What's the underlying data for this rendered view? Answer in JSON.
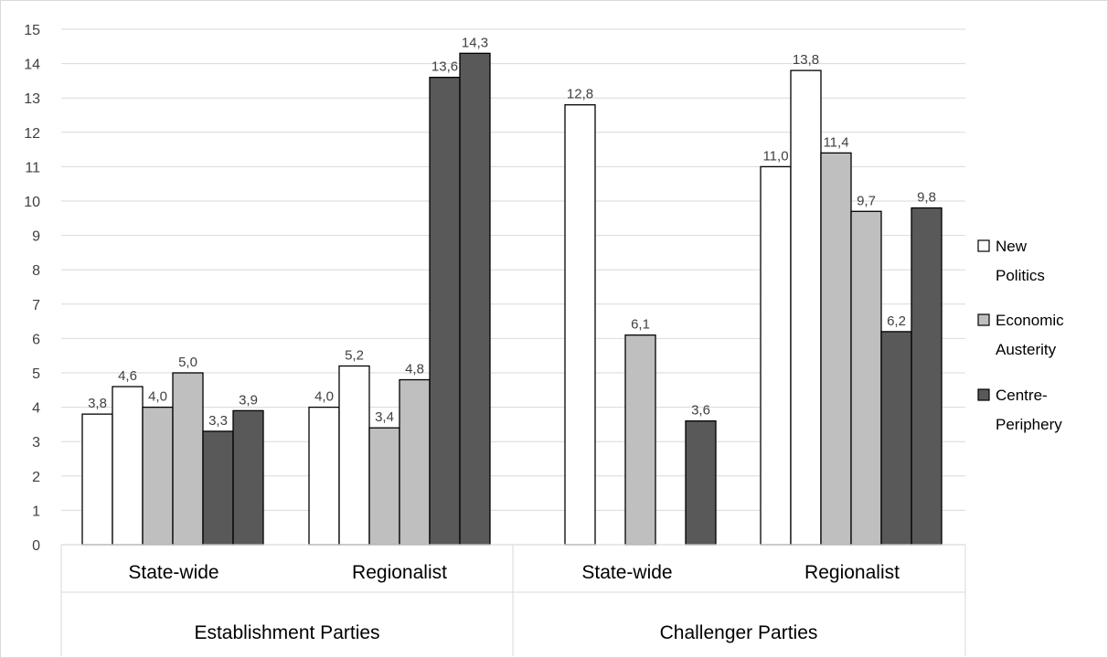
{
  "chart_data": {
    "type": "bar",
    "ylim": [
      0,
      15
    ],
    "yticks": [
      "0",
      "1",
      "2",
      "3",
      "4",
      "5",
      "6",
      "7",
      "8",
      "9",
      "10",
      "11",
      "12",
      "13",
      "14",
      "15"
    ],
    "grid": true,
    "legend_position": "right",
    "groups": [
      {
        "label": "Establishment Parties",
        "subgroups": [
          {
            "label": "State-wide",
            "bars": [
              {
                "series": 0,
                "value": 3.8,
                "label": "3,8"
              },
              {
                "series": 0,
                "value": 4.6,
                "label": "4,6"
              },
              {
                "series": 1,
                "value": 4.0,
                "label": "4,0"
              },
              {
                "series": 1,
                "value": 5.0,
                "label": "5,0"
              },
              {
                "series": 2,
                "value": 3.3,
                "label": "3,3"
              },
              {
                "series": 2,
                "value": 3.9,
                "label": "3,9"
              }
            ]
          },
          {
            "label": "Regionalist",
            "bars": [
              {
                "series": 0,
                "value": 4.0,
                "label": "4,0"
              },
              {
                "series": 0,
                "value": 5.2,
                "label": "5,2"
              },
              {
                "series": 1,
                "value": 3.4,
                "label": "3,4"
              },
              {
                "series": 1,
                "value": 4.8,
                "label": "4,8"
              },
              {
                "series": 2,
                "value": 13.6,
                "label": "13,6"
              },
              {
                "series": 2,
                "value": 14.3,
                "label": "14,3"
              }
            ]
          }
        ]
      },
      {
        "label": "Challenger Parties",
        "subgroups": [
          {
            "label": "State-wide",
            "bars": [
              null,
              {
                "series": 0,
                "value": 12.8,
                "label": "12,8"
              },
              null,
              {
                "series": 1,
                "value": 6.1,
                "label": "6,1"
              },
              null,
              {
                "series": 2,
                "value": 3.6,
                "label": "3,6"
              }
            ]
          },
          {
            "label": "Regionalist",
            "bars": [
              {
                "series": 0,
                "value": 11.0,
                "label": "11,0"
              },
              {
                "series": 0,
                "value": 13.8,
                "label": "13,8"
              },
              {
                "series": 1,
                "value": 11.4,
                "label": "11,4"
              },
              {
                "series": 1,
                "value": 9.7,
                "label": "9,7"
              },
              {
                "series": 2,
                "value": 6.2,
                "label": "6,2"
              },
              {
                "series": 2,
                "value": 9.8,
                "label": "9,8"
              }
            ]
          }
        ]
      }
    ],
    "series": [
      {
        "name": "New Politics",
        "legend_lines": [
          "New",
          "Politics"
        ],
        "color": "#ffffff"
      },
      {
        "name": "Economic Austerity",
        "legend_lines": [
          "Economic",
          "Austerity"
        ],
        "color": "#bfbfbf"
      },
      {
        "name": "Centre-Periphery",
        "legend_lines": [
          "Centre-",
          "Periphery"
        ],
        "color": "#595959"
      }
    ]
  }
}
